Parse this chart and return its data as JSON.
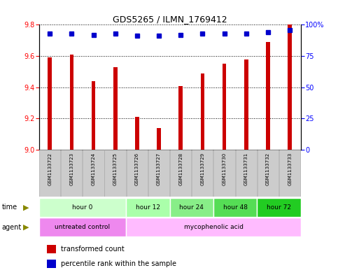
{
  "title": "GDS5265 / ILMN_1769412",
  "samples": [
    "GSM1133722",
    "GSM1133723",
    "GSM1133724",
    "GSM1133725",
    "GSM1133726",
    "GSM1133727",
    "GSM1133728",
    "GSM1133729",
    "GSM1133730",
    "GSM1133731",
    "GSM1133732",
    "GSM1133733"
  ],
  "bar_values": [
    9.59,
    9.61,
    9.44,
    9.53,
    9.21,
    9.14,
    9.41,
    9.49,
    9.55,
    9.58,
    9.69,
    9.8
  ],
  "percentile_values": [
    93,
    93,
    92,
    93,
    91,
    91,
    92,
    93,
    93,
    93,
    94,
    96
  ],
  "ylim_left": [
    9.0,
    9.8
  ],
  "ylim_right": [
    0,
    100
  ],
  "yticks_left": [
    9.0,
    9.2,
    9.4,
    9.6,
    9.8
  ],
  "yticks_right": [
    0,
    25,
    50,
    75,
    100
  ],
  "bar_color": "#cc0000",
  "dot_color": "#0000cc",
  "background_color": "#ffffff",
  "time_groups": [
    {
      "label": "hour 0",
      "start": 0,
      "end": 3,
      "color": "#ccffcc"
    },
    {
      "label": "hour 12",
      "start": 4,
      "end": 5,
      "color": "#aaffaa"
    },
    {
      "label": "hour 24",
      "start": 6,
      "end": 7,
      "color": "#88ee88"
    },
    {
      "label": "hour 48",
      "start": 8,
      "end": 9,
      "color": "#55dd55"
    },
    {
      "label": "hour 72",
      "start": 10,
      "end": 11,
      "color": "#22cc22"
    }
  ],
  "agent_untreated_color": "#ee88ee",
  "agent_treated_color": "#ffbbff",
  "sample_box_color": "#cccccc",
  "sample_box_edge": "#aaaaaa"
}
